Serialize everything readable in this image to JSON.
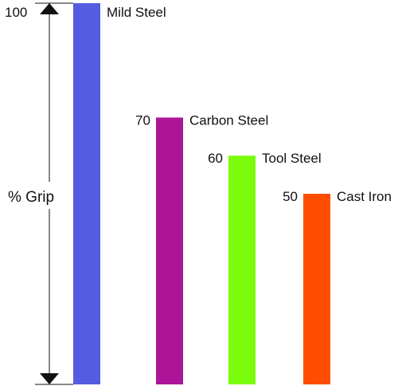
{
  "chart_data": {
    "type": "bar",
    "title": "",
    "xlabel": "",
    "ylabel": "% Grip",
    "ylim": [
      0,
      100
    ],
    "grid": false,
    "legend": "none",
    "y_tick_labels": [
      "100"
    ],
    "categories": [
      "Mild Steel",
      "Carbon Steel",
      "Tool Steel",
      "Cast Iron"
    ],
    "values": [
      100,
      70,
      60,
      50
    ],
    "value_labels": [
      "",
      "70",
      "60",
      "50"
    ],
    "colors": [
      "#545ce0",
      "#ad1599",
      "#7cfc0d",
      "#ff4d00"
    ]
  }
}
